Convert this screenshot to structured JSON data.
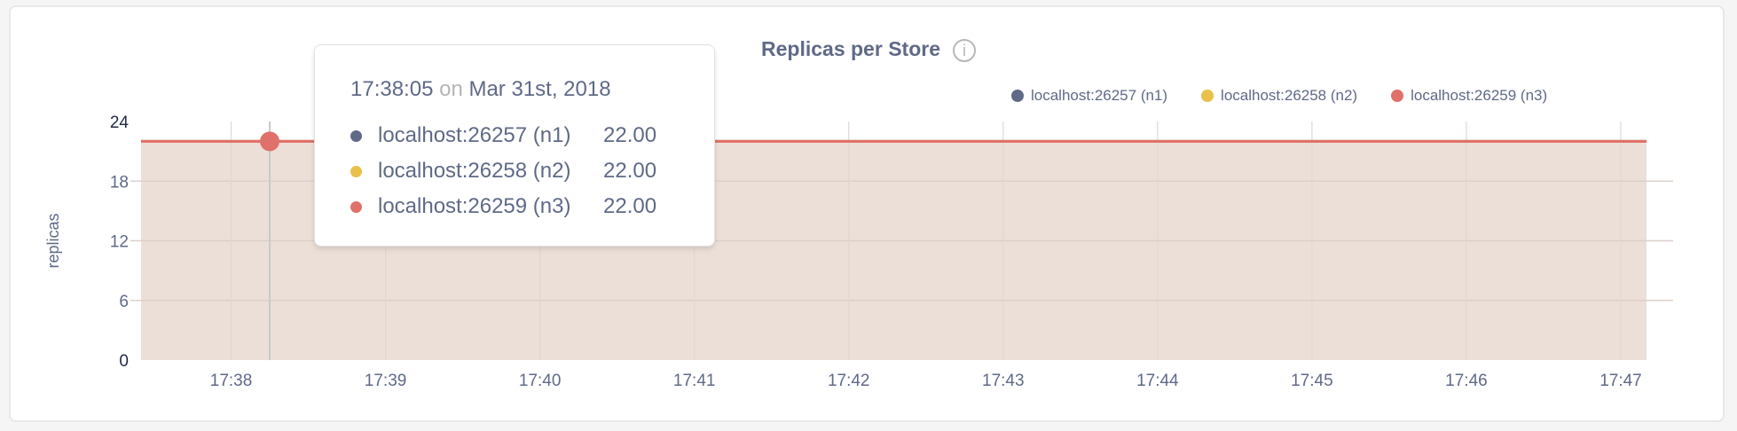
{
  "chart_data": {
    "type": "area",
    "title": "Replicas per Store",
    "ylabel": "replicas",
    "xlabel": "",
    "ylim": [
      0,
      24
    ],
    "yticks": [
      "0",
      "6",
      "12",
      "18",
      "24"
    ],
    "xticks": [
      "17:38",
      "17:39",
      "17:40",
      "17:41",
      "17:42",
      "17:43",
      "17:44",
      "17:45",
      "17:46",
      "17:47"
    ],
    "x_range": [
      "17:37:25",
      "17:47:10"
    ],
    "grid": true,
    "legend": "top-right",
    "series": [
      {
        "name": "localhost:26257 (n1)",
        "color": "#5f6a87",
        "x": [
          "17:37:25",
          "17:47:10"
        ],
        "values": [
          22,
          22
        ]
      },
      {
        "name": "localhost:26258 (n2)",
        "color": "#e9c04b",
        "x": [
          "17:37:25",
          "17:47:10"
        ],
        "values": [
          22,
          22
        ]
      },
      {
        "name": "localhost:26259 (n3)",
        "color": "#e0706a",
        "x": [
          "17:37:25",
          "17:47:10"
        ],
        "values": [
          22,
          22
        ]
      }
    ],
    "fill_color": "#ecdfd8"
  },
  "tooltip": {
    "time": "17:38:05",
    "on": "on",
    "date": "Mar 31st, 2018",
    "hover_x": "17:38:15",
    "rows": [
      {
        "name": "localhost:26257 (n1)",
        "value": "22.00"
      },
      {
        "name": "localhost:26258 (n2)",
        "value": "22.00"
      },
      {
        "name": "localhost:26259 (n3)",
        "value": "22.00"
      }
    ]
  },
  "info_icon": "i"
}
